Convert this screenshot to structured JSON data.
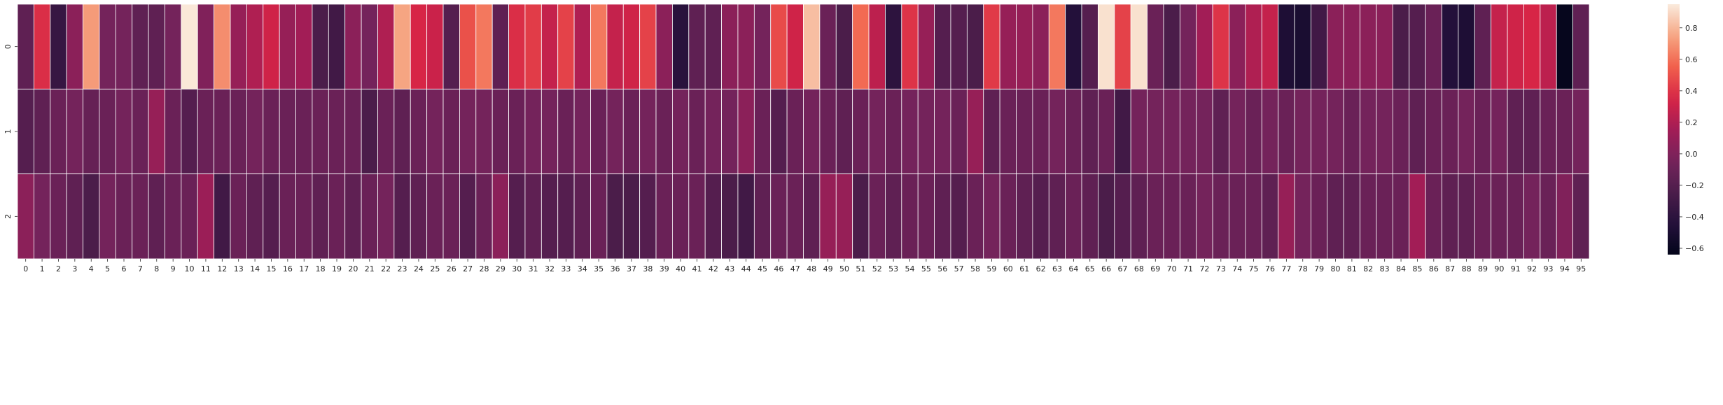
{
  "chart_data": {
    "type": "heatmap",
    "title": "",
    "xlabel": "",
    "ylabel": "",
    "rows": [
      "0",
      "1",
      "2"
    ],
    "columns": [
      "0",
      "1",
      "2",
      "3",
      "4",
      "5",
      "6",
      "7",
      "8",
      "9",
      "10",
      "11",
      "12",
      "13",
      "14",
      "15",
      "16",
      "17",
      "18",
      "19",
      "20",
      "21",
      "22",
      "23",
      "24",
      "25",
      "26",
      "27",
      "28",
      "29",
      "30",
      "31",
      "32",
      "33",
      "34",
      "35",
      "36",
      "37",
      "38",
      "39",
      "40",
      "41",
      "42",
      "43",
      "44",
      "45",
      "46",
      "47",
      "48",
      "49",
      "50",
      "51",
      "52",
      "53",
      "54",
      "55",
      "56",
      "57",
      "58",
      "59",
      "60",
      "61",
      "62",
      "63",
      "64",
      "65",
      "66",
      "67",
      "68",
      "69",
      "70",
      "71",
      "72",
      "73",
      "74",
      "75",
      "76",
      "77",
      "78",
      "79",
      "80",
      "81",
      "82",
      "83",
      "84",
      "85",
      "86",
      "87",
      "88",
      "89",
      "90",
      "91",
      "92",
      "93",
      "94",
      "95"
    ],
    "values": [
      [
        -0.15,
        0.38,
        -0.35,
        0.05,
        0.72,
        -0.05,
        -0.05,
        -0.15,
        -0.15,
        -0.05,
        0.94,
        0.0,
        0.68,
        0.1,
        0.2,
        0.32,
        0.1,
        0.15,
        -0.25,
        -0.3,
        0.05,
        -0.05,
        0.2,
        0.75,
        0.35,
        0.3,
        -0.2,
        0.5,
        0.62,
        -0.15,
        0.38,
        0.43,
        0.28,
        0.45,
        0.2,
        0.62,
        0.28,
        0.32,
        0.45,
        0.05,
        -0.42,
        -0.15,
        -0.15,
        0.05,
        0.05,
        -0.05,
        0.48,
        0.32,
        0.82,
        -0.1,
        -0.25,
        0.58,
        0.25,
        -0.4,
        0.4,
        0.1,
        -0.2,
        -0.2,
        -0.25,
        0.42,
        0.1,
        0.1,
        0.05,
        0.62,
        -0.45,
        -0.2,
        0.92,
        0.45,
        0.92,
        -0.1,
        -0.25,
        -0.05,
        0.15,
        0.4,
        0.05,
        0.2,
        0.28,
        -0.48,
        -0.5,
        -0.3,
        0.05,
        0.05,
        0.05,
        0.05,
        -0.25,
        -0.2,
        -0.1,
        -0.45,
        -0.48,
        -0.15,
        0.28,
        0.32,
        0.35,
        0.25,
        -0.62,
        -0.15
      ],
      [
        -0.2,
        -0.15,
        -0.1,
        -0.05,
        -0.12,
        -0.1,
        -0.05,
        -0.1,
        0.1,
        -0.1,
        -0.2,
        -0.1,
        -0.1,
        -0.1,
        -0.05,
        -0.1,
        -0.1,
        -0.1,
        -0.1,
        -0.1,
        -0.1,
        -0.25,
        -0.1,
        -0.15,
        -0.1,
        -0.05,
        -0.1,
        -0.05,
        -0.05,
        -0.1,
        -0.1,
        -0.05,
        -0.05,
        -0.1,
        -0.05,
        -0.1,
        -0.05,
        -0.1,
        -0.05,
        -0.1,
        -0.05,
        -0.1,
        -0.05,
        -0.05,
        0.05,
        -0.1,
        -0.2,
        -0.1,
        -0.05,
        -0.1,
        -0.15,
        -0.1,
        -0.05,
        -0.1,
        -0.05,
        -0.05,
        -0.05,
        -0.1,
        0.1,
        -0.15,
        -0.1,
        -0.1,
        -0.1,
        -0.05,
        -0.1,
        -0.15,
        -0.1,
        -0.3,
        -0.05,
        -0.05,
        -0.05,
        -0.05,
        -0.05,
        -0.15,
        -0.05,
        -0.1,
        -0.05,
        -0.1,
        -0.05,
        -0.05,
        -0.05,
        -0.1,
        -0.05,
        -0.05,
        -0.1,
        -0.15,
        -0.1,
        -0.1,
        -0.05,
        -0.1,
        -0.05,
        -0.15,
        -0.15,
        -0.1,
        -0.1,
        -0.05
      ],
      [
        0.05,
        -0.05,
        -0.1,
        -0.15,
        -0.25,
        -0.05,
        -0.1,
        -0.1,
        -0.15,
        -0.1,
        -0.1,
        0.12,
        -0.3,
        -0.1,
        -0.15,
        -0.2,
        -0.1,
        -0.1,
        -0.15,
        -0.1,
        -0.15,
        -0.1,
        -0.05,
        -0.2,
        -0.15,
        -0.1,
        -0.1,
        -0.2,
        -0.1,
        0.05,
        -0.2,
        -0.15,
        -0.2,
        -0.2,
        -0.15,
        -0.1,
        -0.25,
        -0.25,
        -0.2,
        -0.1,
        -0.1,
        -0.1,
        -0.2,
        -0.25,
        -0.3,
        -0.15,
        -0.1,
        -0.1,
        -0.15,
        0.1,
        0.1,
        -0.25,
        -0.1,
        -0.15,
        -0.1,
        -0.1,
        -0.15,
        -0.2,
        -0.1,
        -0.05,
        -0.1,
        -0.15,
        -0.2,
        -0.15,
        -0.1,
        -0.15,
        -0.25,
        -0.2,
        -0.15,
        -0.1,
        -0.1,
        -0.1,
        -0.05,
        -0.1,
        -0.1,
        -0.1,
        -0.15,
        0.1,
        -0.05,
        -0.1,
        -0.15,
        -0.15,
        -0.1,
        -0.1,
        -0.1,
        0.15,
        -0.1,
        -0.15,
        -0.15,
        -0.1,
        -0.1,
        -0.1,
        -0.05,
        -0.1,
        0.0,
        -0.15
      ]
    ],
    "colormap": "rocket",
    "vmin": -0.64,
    "vmax": 0.95,
    "colorbar_ticks": [
      "0.8",
      "0.6",
      "0.4",
      "0.2",
      "0.0",
      "−0.2",
      "−0.4",
      "−0.6"
    ],
    "colorbar_tick_values": [
      0.8,
      0.6,
      0.4,
      0.2,
      0.0,
      -0.2,
      -0.4,
      -0.6
    ],
    "grid": false,
    "cell_border_color": "#ffffff"
  }
}
